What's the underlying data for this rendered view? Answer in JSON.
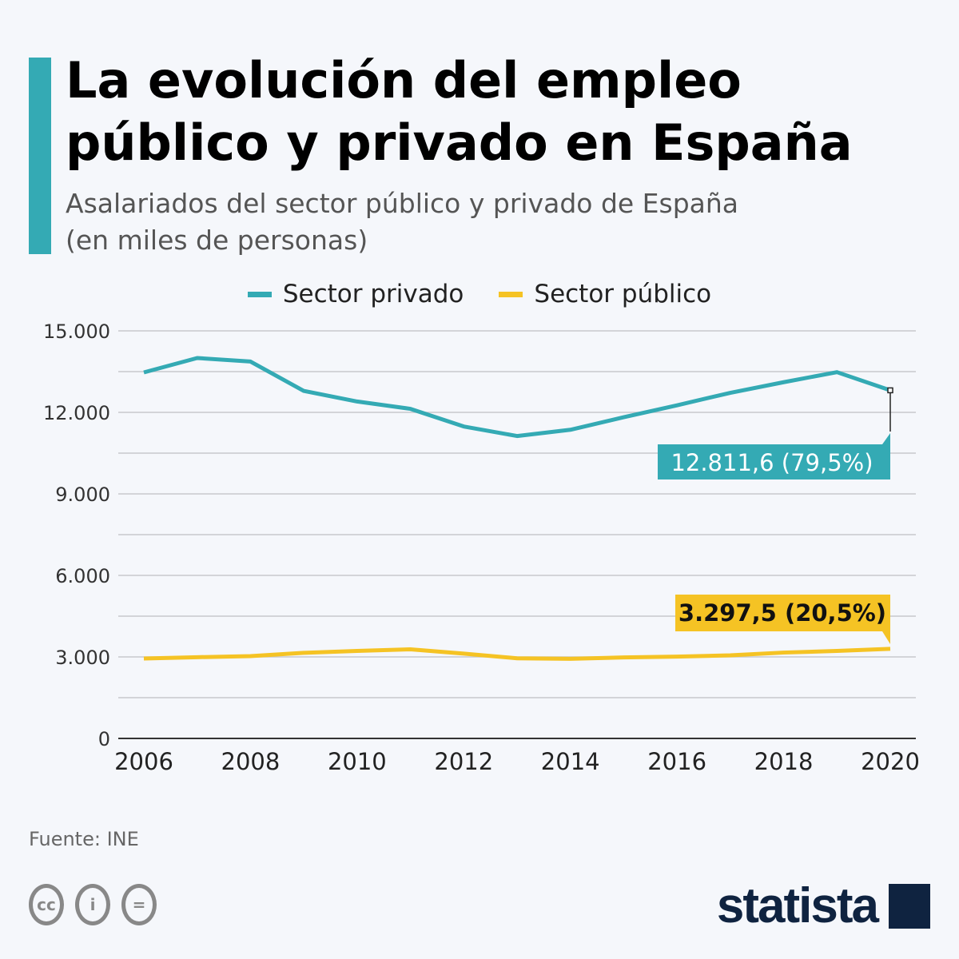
{
  "header": {
    "title": "La evolución del empleo público y privado en España",
    "subtitle_line1": "Asalariados del sector público y privado de España",
    "subtitle_line2": "(en miles de personas)"
  },
  "colors": {
    "accent": "#34aab4",
    "private": "#34aab4",
    "public": "#f5c324",
    "logo": "#0f2340"
  },
  "chart_data": {
    "type": "line",
    "title": "La evolución del empleo público y privado en España",
    "subtitle": "Asalariados del sector público y privado de España (en miles de personas)",
    "x": [
      2006,
      2007,
      2008,
      2009,
      2010,
      2011,
      2012,
      2013,
      2014,
      2015,
      2016,
      2017,
      2018,
      2019,
      2020
    ],
    "xticks": [
      "2006",
      "2008",
      "2010",
      "2012",
      "2014",
      "2016",
      "2018",
      "2020"
    ],
    "yticks": [
      "0",
      "3.000",
      "6.000",
      "9.000",
      "12.000",
      "15.000"
    ],
    "ylim": [
      0,
      15000
    ],
    "grid": true,
    "legend_position": "top",
    "series": [
      {
        "name": "Sector privado",
        "color": "#34aab4",
        "values": [
          13470,
          14000,
          13870,
          12790,
          12400,
          12130,
          11480,
          11130,
          11360,
          11820,
          12260,
          12720,
          13110,
          13480,
          12811.6
        ],
        "label": "12.811,6 (79,5%)"
      },
      {
        "name": "Sector público",
        "color": "#f5c324",
        "values": [
          2940,
          2990,
          3030,
          3150,
          3220,
          3280,
          3120,
          2950,
          2930,
          2980,
          3010,
          3060,
          3160,
          3220,
          3297.5
        ],
        "label": "3.297,5 (20,5%)"
      }
    ]
  },
  "footer": {
    "source": "Fuente: INE",
    "logo": "statista",
    "cc_icons": [
      "cc-icon",
      "by-icon",
      "nd-icon"
    ]
  }
}
